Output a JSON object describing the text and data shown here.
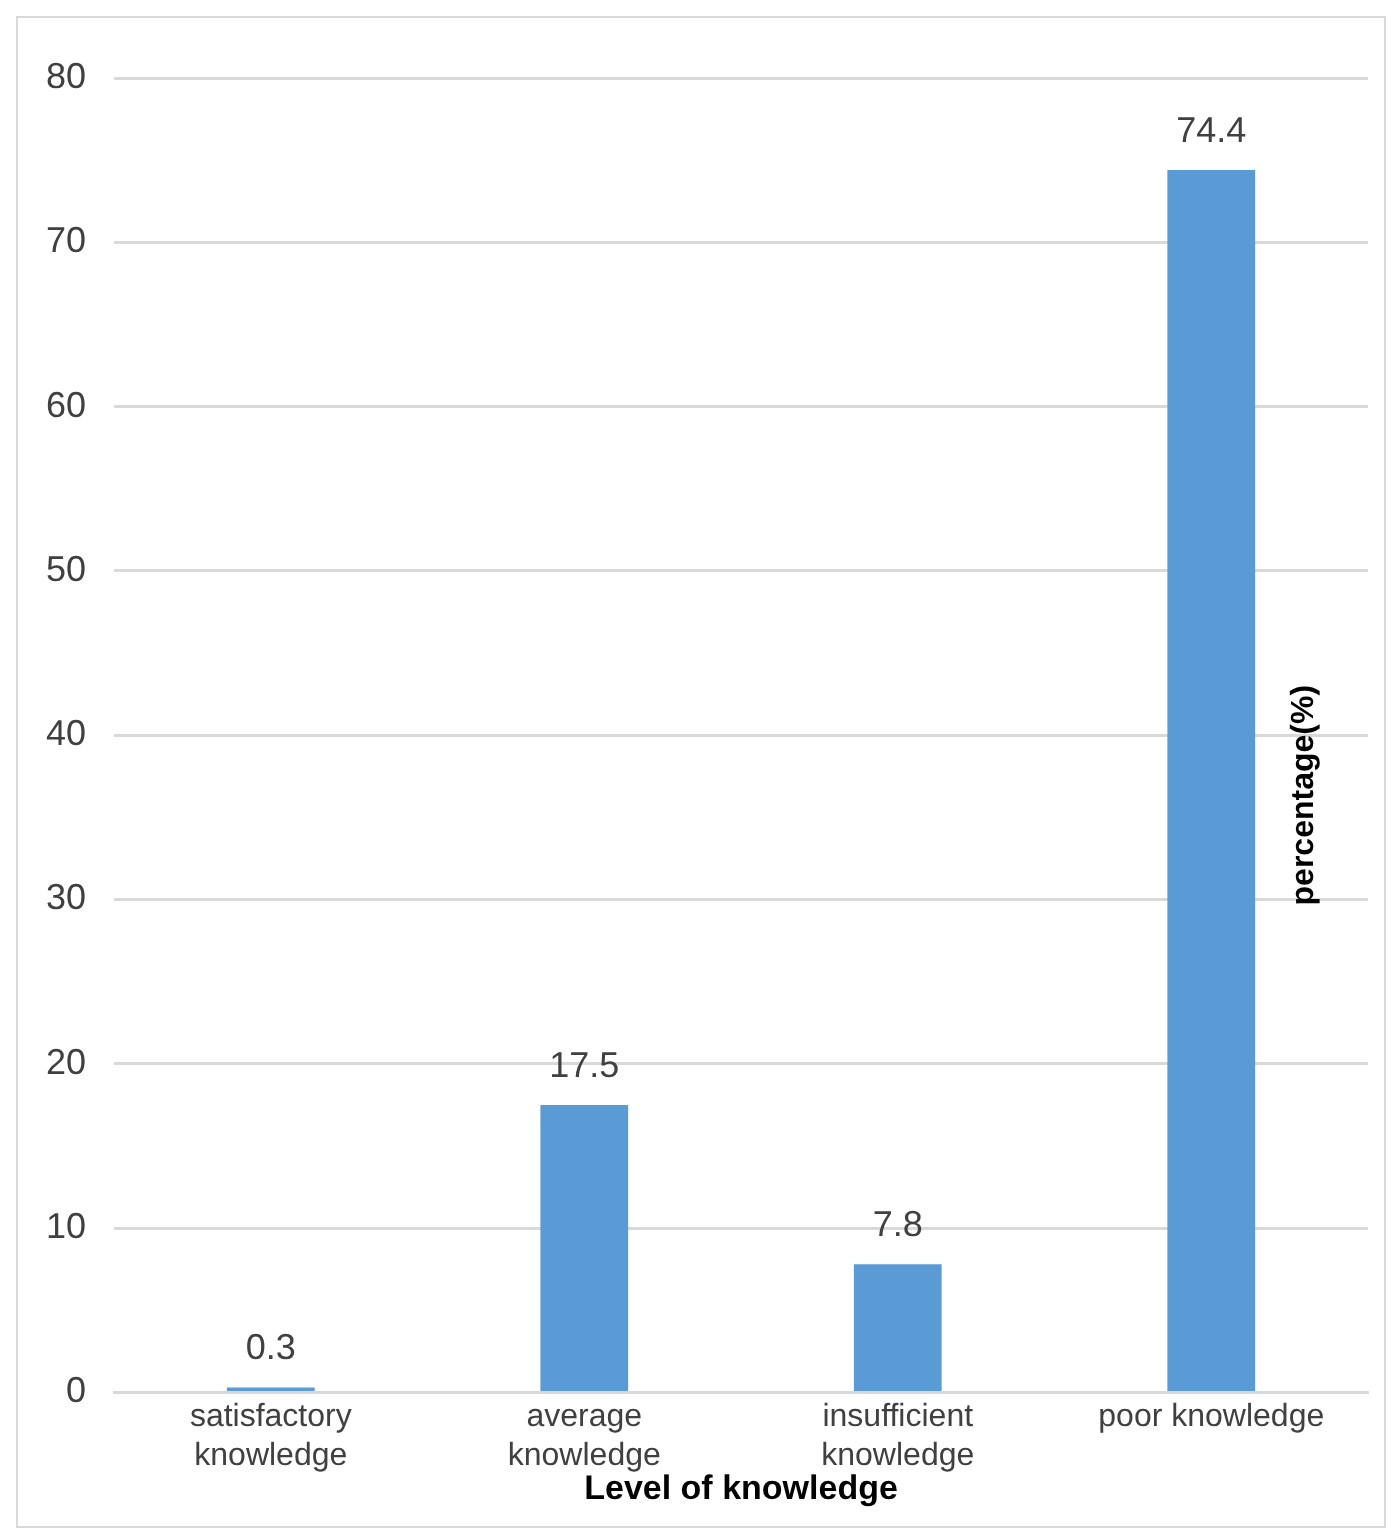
{
  "chart_data": {
    "type": "bar",
    "xlabel": "Level of knowledge",
    "ylabel": "percentage(%)",
    "categories": [
      "satisfactory knowledge",
      "average knowledge",
      "insufficient knowledge",
      "poor knowledge"
    ],
    "values": [
      0.3,
      17.5,
      7.8,
      74.4
    ],
    "color": "#5b9bd5",
    "ylim": [
      0,
      80
    ],
    "yticks": [
      0,
      10,
      20,
      30,
      40,
      50,
      60,
      70,
      80
    ],
    "grid": "y",
    "legend": false,
    "data_labels": true
  }
}
